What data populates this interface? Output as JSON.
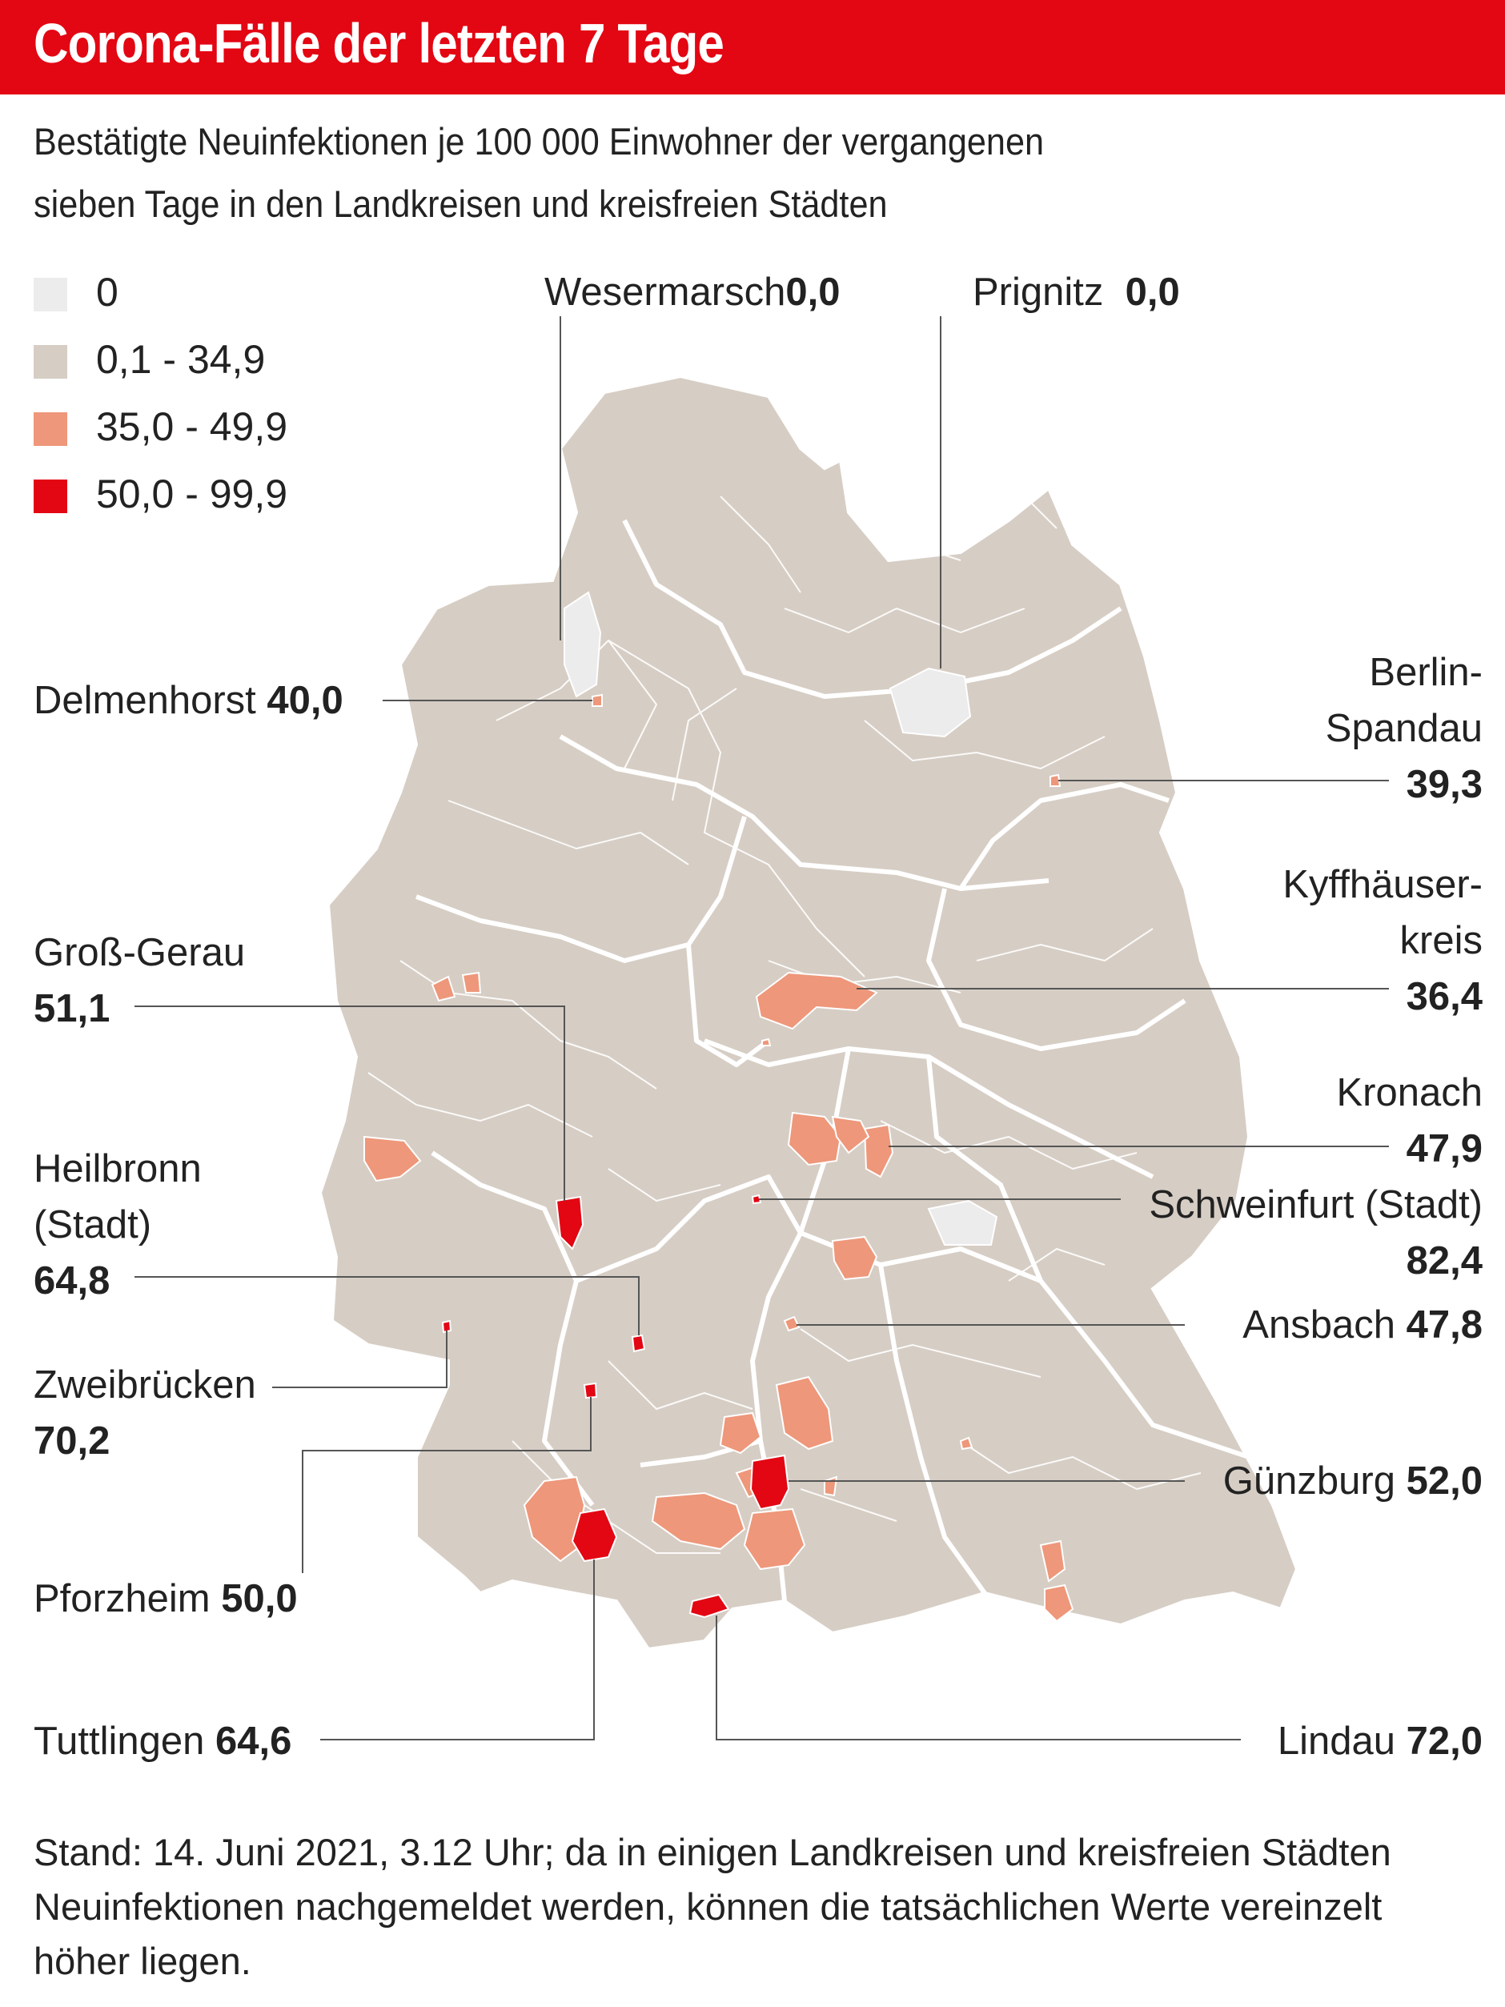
{
  "title": "Corona-Fälle der letzten 7 Tage",
  "subtitle_lines": [
    "Bestätigte Neuinfektionen je 100 000 Einwohner der vergangenen",
    "sieben Tage in den Landkreisen und kreisfreien Städten"
  ],
  "colors": {
    "brand_red": "#e30613",
    "zero": "#ececec",
    "low": "#d6cdc4",
    "mid": "#ee977a",
    "high": "#e30613",
    "border": "#ffffff"
  },
  "legend": [
    {
      "label": "0",
      "color": "#ececec"
    },
    {
      "label": "0,1 - 34,9",
      "color": "#d6cdc4"
    },
    {
      "label": "35,0 - 49,9",
      "color": "#ee977a"
    },
    {
      "label": "50,0 - 99,9",
      "color": "#e30613"
    }
  ],
  "callouts": {
    "wesermarsch": {
      "name": "Wesermarsch",
      "value": "0,0"
    },
    "prignitz": {
      "name": "Prignitz",
      "value": "0,0"
    },
    "delmenhorst": {
      "name": "Delmenhorst",
      "value": "40,0"
    },
    "berlin_spandau": {
      "name_line1": "Berlin-",
      "name_line2": "Spandau",
      "value": "39,3"
    },
    "kyffhaeuserkreis": {
      "name_line1": "Kyffhäuser-",
      "name_line2": "kreis",
      "value": "36,4"
    },
    "gross_gerau": {
      "name": "Groß-Gerau",
      "value": "51,1"
    },
    "kronach": {
      "name": "Kronach",
      "value": "47,9"
    },
    "heilbronn": {
      "name_line1": "Heilbronn",
      "name_line2": "(Stadt)",
      "value": "64,8"
    },
    "schweinfurt": {
      "name": "Schweinfurt (Stadt)",
      "value": "82,4"
    },
    "ansbach": {
      "name": "Ansbach",
      "value": "47,8"
    },
    "zweibruecken": {
      "name": "Zweibrücken",
      "value": "70,2"
    },
    "guenzburg": {
      "name": "Günzburg",
      "value": "52,0"
    },
    "pforzheim": {
      "name": "Pforzheim",
      "value": "50,0"
    },
    "tuttlingen": {
      "name": "Tuttlingen",
      "value": "64,6"
    },
    "lindau": {
      "name": "Lindau",
      "value": "72,0"
    }
  },
  "footnote": "Stand: 14. Juni 2021, 3.12 Uhr; da in einigen Landkreisen und kreisfreien Städten Neuinfektionen nachgemeldet werden, können die tatsächlichen Werte vereinzelt höher liegen."
}
